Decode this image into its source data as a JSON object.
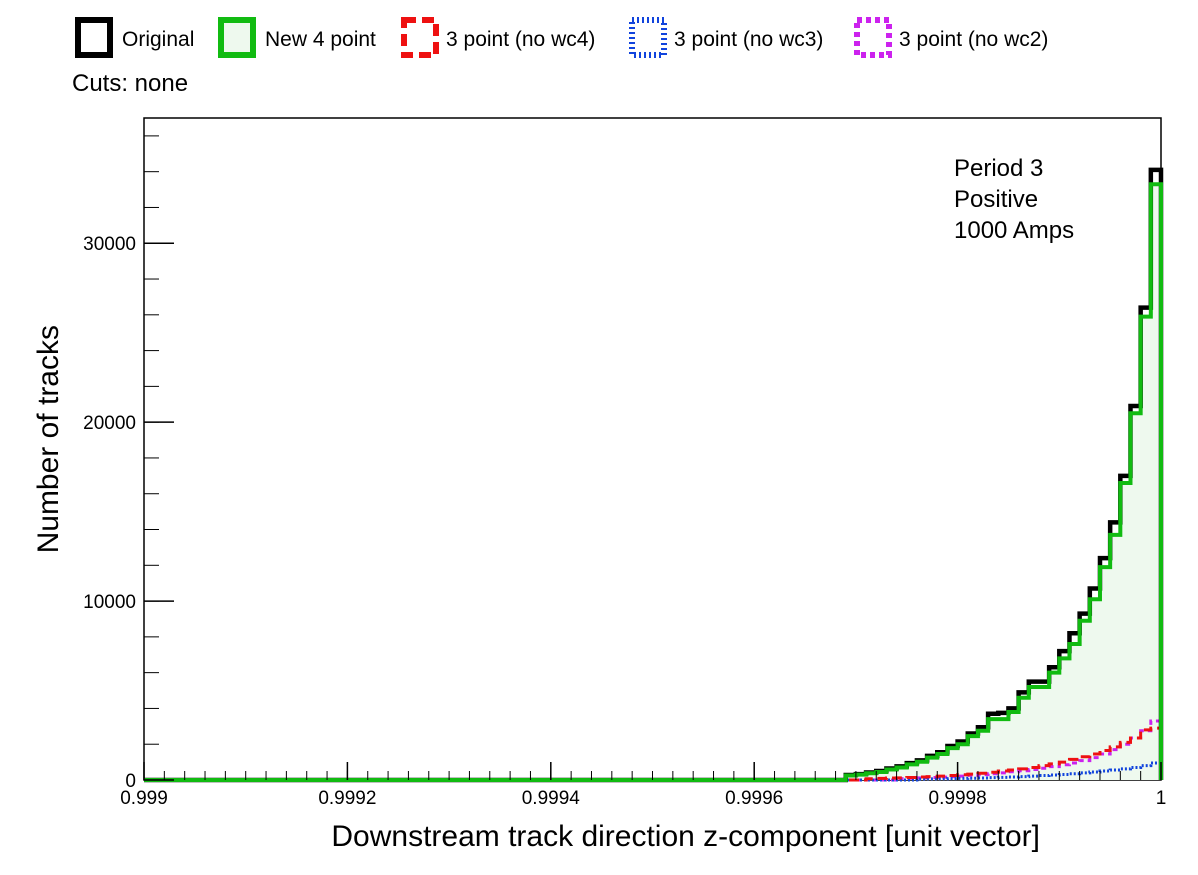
{
  "legend": {
    "entries": [
      {
        "name": "Original",
        "color": "#000000",
        "dash": "solid"
      },
      {
        "name": "New 4 point",
        "color": "#11bb11",
        "dash": "solid",
        "fill": "#eef9ee"
      },
      {
        "name": "3 point (no wc4)",
        "color": "#ee1111",
        "dash": "dashed"
      },
      {
        "name": "3 point (no wc3)",
        "color": "#1144dd",
        "dash": "dotted"
      },
      {
        "name": "3 point (no wc2)",
        "color": "#cc22ee",
        "dash": "dotted"
      }
    ]
  },
  "cuts_label": "Cuts: none",
  "annotation": [
    "Period 3",
    "Positive",
    "1000 Amps"
  ],
  "chart_data": {
    "type": "histogram",
    "xlabel": "Downstream track direction z-component [unit vector]",
    "ylabel": "Number of tracks",
    "xlim": [
      0.999,
      1.0
    ],
    "ylim": [
      0,
      37000
    ],
    "xticks": [
      0.999,
      0.9992,
      0.9994,
      0.9996,
      0.9998,
      1.0
    ],
    "xtick_labels": [
      "0.999",
      "0.9992",
      "0.9994",
      "0.9996",
      "0.9998",
      "1"
    ],
    "yticks": [
      0,
      10000,
      20000,
      30000
    ],
    "ytick_labels": [
      "0",
      "10000",
      "20000",
      "30000"
    ],
    "grid": false,
    "bin_edges_x": [
      0.99962,
      0.99964,
      0.99966,
      0.99968,
      0.9997,
      0.99972,
      0.99974,
      0.99976,
      0.99978,
      0.9998,
      0.99982,
      0.99984,
      0.99986,
      0.99988,
      0.9999,
      0.99992,
      0.99994,
      0.99996,
      0.99998,
      1.0
    ],
    "series": [
      {
        "name": "Original",
        "values_per_pair": [
          [
            280,
            330
          ],
          [
            420,
            500
          ],
          [
            640,
            760
          ],
          [
            940,
            1100
          ],
          [
            1350,
            1550
          ],
          [
            1900,
            2150
          ],
          [
            2600,
            2950
          ],
          [
            3700,
            3750
          ],
          [
            4000,
            4900
          ],
          [
            5500,
            5500
          ],
          [
            6300,
            7200
          ],
          [
            8200,
            9300
          ],
          [
            10700,
            12400
          ],
          [
            14400,
            17000
          ],
          [
            20900,
            26400
          ],
          [
            34100
          ]
        ]
      },
      {
        "name": "New 4 point",
        "values_per_pair": [
          [
            250,
            300
          ],
          [
            380,
            450
          ],
          [
            590,
            700
          ],
          [
            870,
            1020
          ],
          [
            1250,
            1450
          ],
          [
            1780,
            2000
          ],
          [
            2450,
            2750
          ],
          [
            3400,
            3400
          ],
          [
            3800,
            4600
          ],
          [
            5200,
            5200
          ],
          [
            6000,
            6800
          ],
          [
            7600,
            8900
          ],
          [
            10100,
            11900
          ],
          [
            13700,
            16600
          ],
          [
            20500,
            25900
          ],
          [
            33300
          ]
        ]
      },
      {
        "name": "3 point (no wc4)",
        "values_per_pair": [
          [
            70,
            90
          ],
          [
            110,
            120
          ],
          [
            140,
            170
          ],
          [
            190,
            220
          ],
          [
            250,
            290
          ],
          [
            330,
            380
          ],
          [
            430,
            500
          ],
          [
            560,
            620
          ],
          [
            700,
            800
          ],
          [
            900,
            1000
          ],
          [
            1150,
            1300
          ],
          [
            1450,
            1650
          ],
          [
            1850,
            2100
          ],
          [
            2350,
            2800
          ],
          [
            2900
          ]
        ]
      },
      {
        "name": "3 point (no wc3)",
        "values_per_pair": [
          [
            50,
            60
          ],
          [
            70,
            80
          ],
          [
            90,
            100
          ],
          [
            110,
            130
          ],
          [
            150,
            170
          ],
          [
            190,
            220
          ],
          [
            250,
            280
          ],
          [
            310,
            350
          ],
          [
            400,
            450
          ],
          [
            500,
            560
          ],
          [
            620,
            700
          ],
          [
            800,
            950
          ]
        ]
      },
      {
        "name": "3 point (no wc2)",
        "values_per_pair": [
          [
            80,
            100
          ],
          [
            120,
            140
          ],
          [
            160,
            190
          ],
          [
            220,
            260
          ],
          [
            300,
            350
          ],
          [
            400,
            460
          ],
          [
            520,
            590
          ],
          [
            660,
            750
          ],
          [
            850,
            950
          ],
          [
            1080,
            1250
          ],
          [
            1450,
            1700
          ],
          [
            2000,
            2350
          ],
          [
            2750,
            3300
          ]
        ]
      }
    ]
  }
}
